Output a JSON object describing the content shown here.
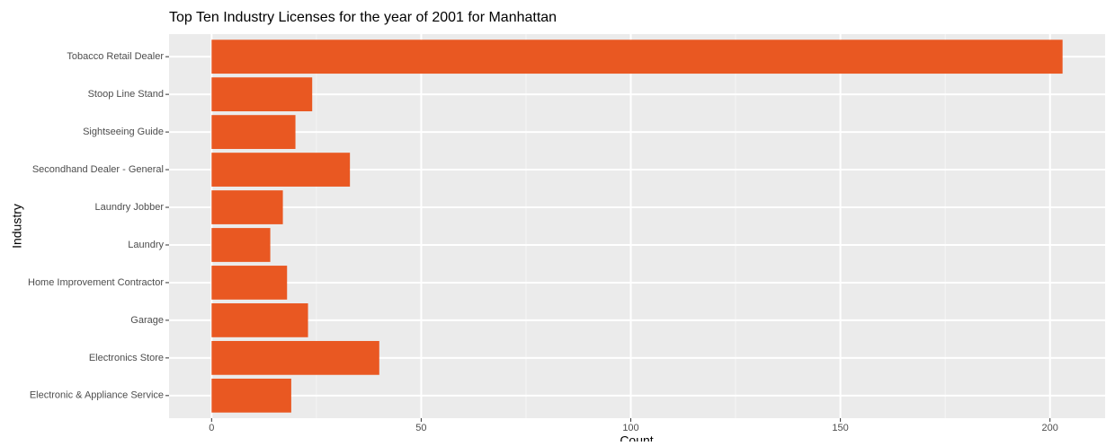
{
  "chart_data": {
    "type": "barh",
    "title": "Top Ten Industry Licenses for the year of 2001 for Manhattan",
    "x_label": "Count",
    "y_label": "Industry",
    "categories": [
      "Tobacco Retail Dealer",
      "Stoop Line Stand",
      "Sightseeing Guide",
      "Secondhand Dealer - General",
      "Laundry Jobber",
      "Laundry",
      "Home Improvement Contractor",
      "Garage",
      "Electronics Store",
      "Electronic & Appliance Service"
    ],
    "values": [
      203,
      24,
      20,
      33,
      17,
      14,
      18,
      23,
      40,
      19
    ],
    "color": "#e95822",
    "xlim": [
      -10.15,
      213.15
    ],
    "xticks": [
      0,
      50,
      100,
      150,
      200
    ],
    "x_minor_ticks": [
      25,
      75,
      125,
      175
    ],
    "grid": true
  }
}
